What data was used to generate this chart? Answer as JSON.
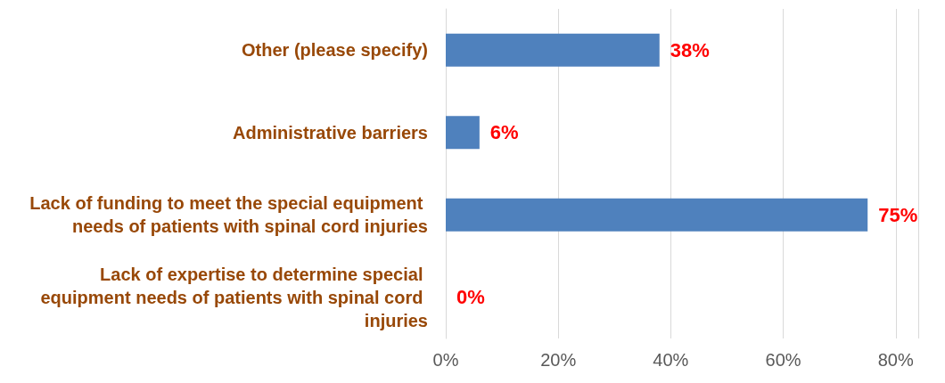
{
  "chart_data": {
    "type": "bar",
    "orientation": "horizontal",
    "categories": [
      "Other (please specify)",
      "Administrative barriers",
      "Lack of funding to meet the special equipment needs of patients with spinal cord injuries",
      "Lack of expertise to determine special equipment needs of patients with spinal cord injuries"
    ],
    "values": [
      38,
      6,
      75,
      0
    ],
    "color": "#4f81bd",
    "value_labels": [
      "38%",
      "6%",
      "75%",
      "0%"
    ],
    "xlim": [
      0,
      84
    ],
    "xticks": [
      {
        "value": 0,
        "label": "0%"
      },
      {
        "value": 20,
        "label": "20%"
      },
      {
        "value": 40,
        "label": "40%"
      },
      {
        "value": 60,
        "label": "60%"
      },
      {
        "value": 80,
        "label": "80%"
      }
    ],
    "grid": "x"
  }
}
